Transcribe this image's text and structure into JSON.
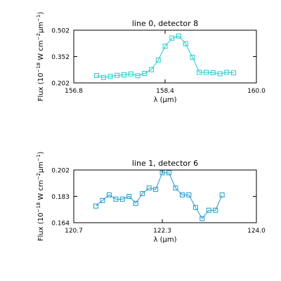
{
  "chart_data": [
    {
      "type": "line",
      "title": "line 0, detector 8",
      "xlabel": "λ (μm)",
      "ylabel_main": "Flux (10",
      "ylabel_exp1": "−18",
      "ylabel_mid": " W cm",
      "ylabel_exp2": "−2",
      "ylabel_mu": "μm",
      "ylabel_exp3": "−1",
      "ylabel_end": ")",
      "xlim": [
        156.8,
        160.0
      ],
      "ylim": [
        0.202,
        0.502
      ],
      "xticks": [
        156.8,
        158.4,
        160.0
      ],
      "xtick_labels": [
        "156.8",
        "158.4",
        "160.0"
      ],
      "yticks": [
        0.202,
        0.352,
        0.502
      ],
      "ytick_labels": [
        "0.202",
        "0.352",
        "0.502"
      ],
      "color": "#22cccc",
      "marker": "square",
      "series": [
        {
          "x": [
            157.2,
            157.32,
            157.44,
            157.56,
            157.68,
            157.8,
            157.92,
            158.04,
            158.16,
            158.28,
            158.4,
            158.52,
            158.64,
            158.76,
            158.88,
            159.0,
            159.12,
            159.24,
            159.36,
            159.48,
            159.6
          ],
          "y": [
            0.244,
            0.233,
            0.239,
            0.245,
            0.248,
            0.253,
            0.243,
            0.256,
            0.277,
            0.332,
            0.411,
            0.457,
            0.469,
            0.425,
            0.348,
            0.262,
            0.262,
            0.26,
            0.254,
            0.262,
            0.259
          ]
        }
      ]
    },
    {
      "type": "line",
      "title": "line 1, detector 6",
      "xlabel": "λ (μm)",
      "ylabel_main": "Flux (10",
      "ylabel_exp1": "−18",
      "ylabel_mid": " W cm",
      "ylabel_exp2": "−2",
      "ylabel_mu": "μm",
      "ylabel_exp3": "−1",
      "ylabel_end": ")",
      "xlim": [
        120.7,
        124.0
      ],
      "ylim": [
        0.164,
        0.202
      ],
      "xticks": [
        120.7,
        122.3,
        124.0
      ],
      "xtick_labels": [
        "120.7",
        "122.3",
        "124.0"
      ],
      "yticks": [
        0.164,
        0.183,
        0.202
      ],
      "ytick_labels": [
        "0.164",
        "0.183",
        "0.202"
      ],
      "color": "#2299cc",
      "marker": "square",
      "series": [
        {
          "x": [
            121.1,
            121.22,
            121.34,
            121.46,
            121.58,
            121.7,
            121.82,
            121.94,
            122.06,
            122.18,
            122.3,
            122.42,
            122.54,
            122.66,
            122.78,
            122.9,
            123.02,
            123.14,
            123.26,
            123.38
          ],
          "y": [
            0.176,
            0.18,
            0.184,
            0.181,
            0.181,
            0.183,
            0.178,
            0.185,
            0.189,
            0.188,
            0.2,
            0.2,
            0.189,
            0.184,
            0.184,
            0.175,
            0.167,
            0.173,
            0.173,
            0.184
          ]
        }
      ]
    }
  ]
}
